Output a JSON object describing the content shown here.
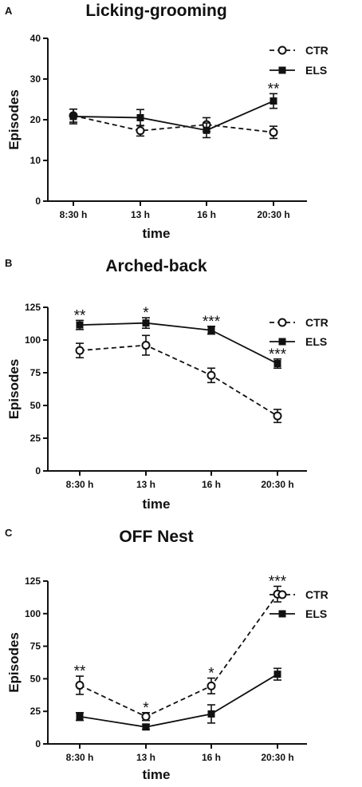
{
  "chart_data": [
    {
      "type": "line",
      "panel": "A",
      "title": "Licking-grooming",
      "xlabel": "time",
      "ylabel": "Episodes",
      "categories": [
        "8:30 h",
        "13 h",
        "16 h",
        "20:30 h"
      ],
      "yticks": [
        "0",
        "10",
        "20",
        "30",
        "40"
      ],
      "ylim": [
        0,
        40
      ],
      "legend_position": "top-right",
      "series": [
        {
          "name": "CTR",
          "values": [
            21,
            17.3,
            18.8,
            16.9
          ],
          "errors": [
            1.6,
            1.3,
            1.7,
            1.5
          ],
          "style": "dashed",
          "marker": "open-circle"
        },
        {
          "name": "ELS",
          "values": [
            20.8,
            20.5,
            17.4,
            24.6
          ],
          "errors": [
            1.8,
            2.0,
            1.8,
            1.8
          ],
          "style": "solid",
          "marker": "filled-square"
        }
      ],
      "annotations": [
        {
          "category": "20:30 h",
          "text": "**"
        }
      ]
    },
    {
      "type": "line",
      "panel": "B",
      "title": "Arched-back",
      "xlabel": "time",
      "ylabel": "Episodes",
      "categories": [
        "8:30 h",
        "13 h",
        "16 h",
        "20:30 h"
      ],
      "yticks": [
        "0",
        "25",
        "50",
        "75",
        "100",
        "125"
      ],
      "ylim": [
        0,
        125
      ],
      "legend_position": "top-right",
      "series": [
        {
          "name": "CTR",
          "values": [
            92,
            96,
            73,
            42
          ],
          "errors": [
            5.5,
            7.5,
            5.5,
            5
          ],
          "style": "dashed",
          "marker": "open-circle"
        },
        {
          "name": "ELS",
          "values": [
            111.5,
            113,
            107.5,
            82
          ],
          "errors": [
            3.5,
            4,
            3,
            3.5
          ],
          "style": "solid",
          "marker": "filled-square"
        }
      ],
      "annotations": [
        {
          "category": "8:30 h",
          "text": "**"
        },
        {
          "category": "13 h",
          "text": "*"
        },
        {
          "category": "16 h",
          "text": "***"
        },
        {
          "category": "20:30 h",
          "text": "***"
        }
      ]
    },
    {
      "type": "line",
      "panel": "C",
      "title": "OFF Nest",
      "xlabel": "time",
      "ylabel": "Episodes",
      "categories": [
        "8:30 h",
        "13 h",
        "16 h",
        "20:30 h"
      ],
      "yticks": [
        "0",
        "25",
        "50",
        "75",
        "100",
        "125"
      ],
      "ylim": [
        0,
        125
      ],
      "legend_position": "top-right",
      "series": [
        {
          "name": "CTR",
          "values": [
            45,
            21,
            44.5,
            115
          ],
          "errors": [
            7,
            3,
            6,
            6
          ],
          "style": "dashed",
          "marker": "open-circle"
        },
        {
          "name": "ELS",
          "values": [
            21,
            13,
            23,
            53.5
          ],
          "errors": [
            3,
            2,
            7,
            4.5
          ],
          "style": "solid",
          "marker": "filled-square"
        }
      ],
      "annotations": [
        {
          "category": "8:30 h",
          "text": "**"
        },
        {
          "category": "13 h",
          "text": "*"
        },
        {
          "category": "16 h",
          "text": "*"
        },
        {
          "category": "20:30 h",
          "text": "***"
        }
      ]
    }
  ]
}
